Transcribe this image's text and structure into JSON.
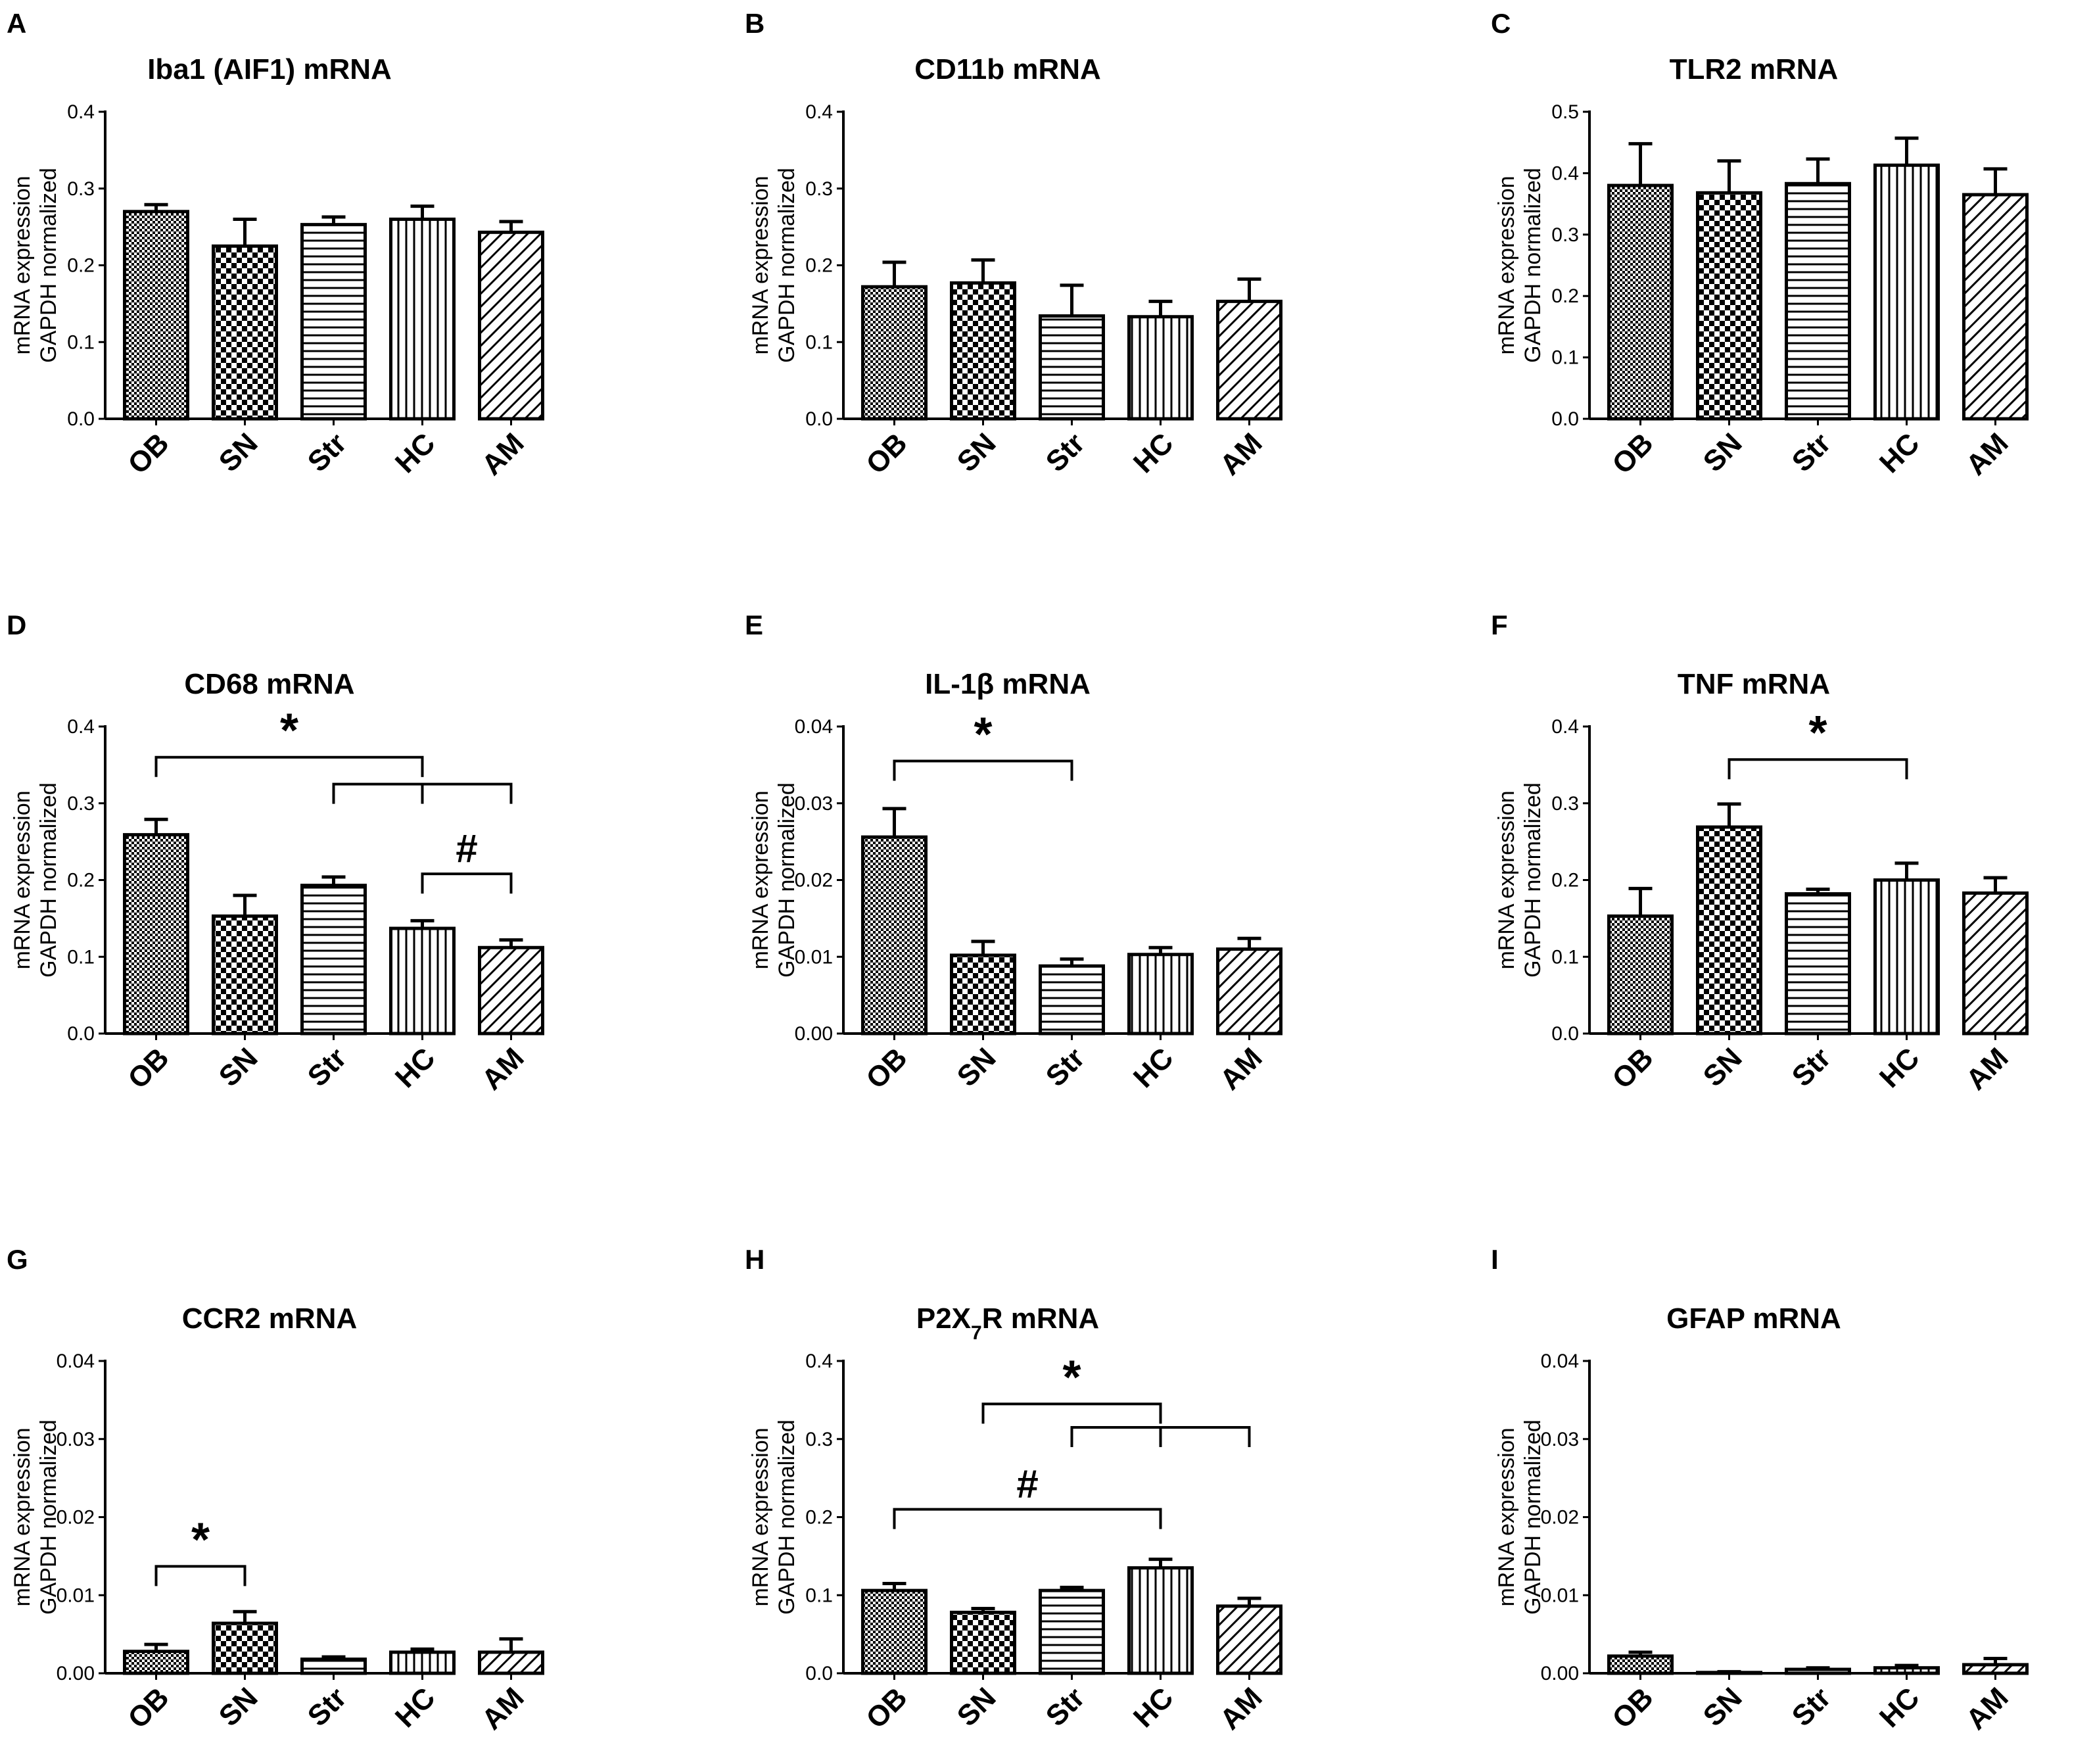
{
  "chart_data": [
    {
      "panel": "A",
      "type": "bar",
      "title": "Iba1 (AIF1) mRNA",
      "ylabel": [
        "mRNA expression",
        "GAPDH normalized"
      ],
      "categories": [
        "OB",
        "SN",
        "Str",
        "HC",
        "AM"
      ],
      "values": [
        0.27,
        0.225,
        0.253,
        0.26,
        0.243
      ],
      "errors": [
        0.009,
        0.035,
        0.01,
        0.017,
        0.014
      ],
      "ylim": [
        0,
        0.4
      ],
      "yticks": [
        "0.0",
        "0.1",
        "0.2",
        "0.3",
        "0.4"
      ],
      "annotations": []
    },
    {
      "panel": "B",
      "type": "bar",
      "title": "CD11b mRNA",
      "ylabel": [
        "mRNA expression",
        "GAPDH normalized"
      ],
      "categories": [
        "OB",
        "SN",
        "Str",
        "HC",
        "AM"
      ],
      "values": [
        0.172,
        0.177,
        0.134,
        0.133,
        0.153
      ],
      "errors": [
        0.032,
        0.03,
        0.04,
        0.02,
        0.029
      ],
      "ylim": [
        0,
        0.4
      ],
      "yticks": [
        "0.0",
        "0.1",
        "0.2",
        "0.3",
        "0.4"
      ],
      "annotations": []
    },
    {
      "panel": "C",
      "type": "bar",
      "title": "TLR2 mRNA",
      "ylabel": [
        "mRNA expression",
        "GAPDH normalized"
      ],
      "categories": [
        "OB",
        "SN",
        "Str",
        "HC",
        "AM"
      ],
      "values": [
        0.38,
        0.368,
        0.383,
        0.413,
        0.365
      ],
      "errors": [
        0.068,
        0.052,
        0.04,
        0.044,
        0.042
      ],
      "ylim": [
        0,
        0.5
      ],
      "yticks": [
        "0.0",
        "0.1",
        "0.2",
        "0.3",
        "0.4",
        "0.5"
      ],
      "annotations": []
    },
    {
      "panel": "D",
      "type": "bar",
      "title": "CD68 mRNA",
      "ylabel": [
        "mRNA expression",
        "GAPDH normalized"
      ],
      "categories": [
        "OB",
        "SN",
        "Str",
        "HC",
        "AM"
      ],
      "values": [
        0.259,
        0.153,
        0.193,
        0.137,
        0.112
      ],
      "errors": [
        0.02,
        0.027,
        0.011,
        0.01,
        0.01
      ],
      "ylim": [
        0,
        0.4
      ],
      "yticks": [
        "0.0",
        "0.1",
        "0.2",
        "0.3",
        "0.4"
      ],
      "annotations": [
        {
          "symbol": "*",
          "from": 0,
          "to": 3,
          "y": 0.36,
          "cross": [
            3
          ],
          "cls": "sig"
        },
        {
          "symbol": "",
          "from": 2,
          "to": 4,
          "y": 0.325,
          "cross": [
            3
          ],
          "cls": "sig"
        },
        {
          "symbol": "#",
          "from": 3,
          "to": 4,
          "y": 0.208,
          "cross": [],
          "cls": "sig-hash"
        }
      ]
    },
    {
      "panel": "E",
      "type": "bar",
      "title": "IL-1β  mRNA",
      "ylabel": [
        "mRNA expression",
        "GAPDH normalized"
      ],
      "categories": [
        "OB",
        "SN",
        "Str",
        "HC",
        "AM"
      ],
      "values": [
        0.0256,
        0.0102,
        0.0088,
        0.0103,
        0.011
      ],
      "errors": [
        0.0037,
        0.0018,
        0.0009,
        0.0009,
        0.0014
      ],
      "ylim": [
        0,
        0.04
      ],
      "yticks": [
        "0.00",
        "0.01",
        "0.02",
        "0.03",
        "0.04"
      ],
      "annotations": [
        {
          "symbol": "*",
          "from": 0,
          "to": 2,
          "y": 0.0355,
          "cross": [],
          "cls": "sig"
        }
      ]
    },
    {
      "panel": "F",
      "type": "bar",
      "title": "TNF mRNA",
      "ylabel": [
        "mRNA expression",
        "GAPDH normalized"
      ],
      "categories": [
        "OB",
        "SN",
        "Str",
        "HC",
        "AM"
      ],
      "values": [
        0.153,
        0.269,
        0.182,
        0.2,
        0.183
      ],
      "errors": [
        0.036,
        0.03,
        0.006,
        0.022,
        0.02
      ],
      "ylim": [
        0,
        0.4
      ],
      "yticks": [
        "0.0",
        "0.1",
        "0.2",
        "0.3",
        "0.4"
      ],
      "annotations": [
        {
          "symbol": "*",
          "from": 1,
          "to": 3,
          "y": 0.357,
          "cross": [],
          "cls": "sig"
        }
      ]
    },
    {
      "panel": "G",
      "type": "bar",
      "title": "CCR2 mRNA",
      "ylabel": [
        "mRNA expression",
        "GAPDH normalized"
      ],
      "categories": [
        "OB",
        "SN",
        "Str",
        "HC",
        "AM"
      ],
      "values": [
        0.0028,
        0.0064,
        0.0018,
        0.0027,
        0.0027
      ],
      "errors": [
        0.0009,
        0.0015,
        0.0003,
        0.0004,
        0.0017
      ],
      "ylim": [
        0,
        0.04
      ],
      "yticks": [
        "0.00",
        "0.01",
        "0.02",
        "0.03",
        "0.04"
      ],
      "annotations": [
        {
          "symbol": "*",
          "from": 0,
          "to": 1,
          "y": 0.0137,
          "cross": [],
          "cls": "sig"
        }
      ]
    },
    {
      "panel": "H",
      "type": "bar",
      "title": "P2X7R mRNA",
      "title_parts": [
        "P2X",
        "7",
        "R mRNA"
      ],
      "ylabel": [
        "mRNA expression",
        "GAPDH normalized"
      ],
      "categories": [
        "OB",
        "SN",
        "Str",
        "HC",
        "AM"
      ],
      "values": [
        0.106,
        0.078,
        0.106,
        0.135,
        0.086
      ],
      "errors": [
        0.009,
        0.005,
        0.004,
        0.011,
        0.01
      ],
      "ylim": [
        0,
        0.4
      ],
      "yticks": [
        "0.0",
        "0.1",
        "0.2",
        "0.3",
        "0.4"
      ],
      "annotations": [
        {
          "symbol": "*",
          "from": 1,
          "to": 3,
          "y": 0.345,
          "cross": [],
          "cls": "sig"
        },
        {
          "symbol": "",
          "from": 2,
          "to": 4,
          "y": 0.315,
          "cross": [
            3
          ],
          "cls": "sig"
        },
        {
          "symbol": "#",
          "from": 0,
          "to": 3,
          "y": 0.21,
          "cross": [],
          "cls": "sig-hash"
        }
      ]
    },
    {
      "panel": "I",
      "type": "bar",
      "title": "GFAP mRNA",
      "ylabel": [
        "mRNA expression",
        "GAPDH normalized"
      ],
      "categories": [
        "OB",
        "SN",
        "Str",
        "HC",
        "AM"
      ],
      "values": [
        0.0022,
        0.0001,
        0.0005,
        0.0007,
        0.0011
      ],
      "errors": [
        0.0005,
        0.0001,
        0.0002,
        0.0003,
        0.0008
      ],
      "ylim": [
        0,
        0.04
      ],
      "yticks": [
        "0.00",
        "0.01",
        "0.02",
        "0.03",
        "0.04"
      ],
      "annotations": []
    }
  ]
}
